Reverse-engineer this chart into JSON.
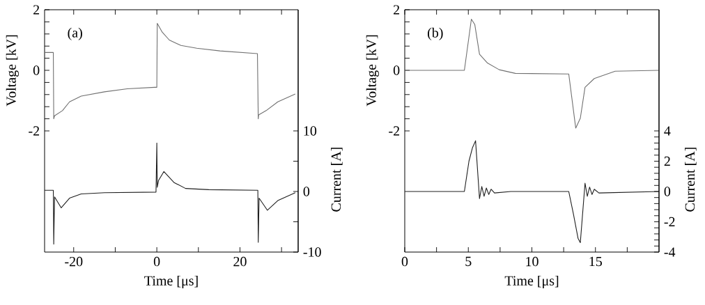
{
  "chart_data": [
    {
      "type": "line",
      "annotations": [
        "(a)"
      ],
      "xlabel": "Time [μs]",
      "ylabel": "Voltage [kV]",
      "y2label": "Current [A]",
      "xlim": [
        -27,
        34
      ],
      "xticks": [
        -20,
        {
          "value": -10,
          "label": null
        },
        0,
        {
          "value": 10,
          "label": null
        },
        20,
        {
          "value": 30,
          "label": null
        }
      ],
      "ylim": [
        -6,
        2
      ],
      "yticks": [
        -2,
        {
          "value": -1.6,
          "label": null
        },
        {
          "value": -1.2,
          "label": null
        },
        {
          "value": -0.8,
          "label": null
        },
        {
          "value": -0.4,
          "label": null
        },
        0,
        {
          "value": 0.4,
          "label": null
        },
        {
          "value": 0.8,
          "label": null
        },
        {
          "value": 1.2,
          "label": null
        },
        {
          "value": 1.6,
          "label": null
        },
        2
      ],
      "y2lim": [
        -10,
        30
      ],
      "y2ticks": [
        -10,
        {
          "value": -5,
          "label": null
        },
        0,
        {
          "value": 5,
          "label": null
        },
        10
      ],
      "series": [
        {
          "color": "#707070",
          "x": [
            -27,
            -24.9,
            -24.8,
            -24.6,
            -22.7,
            -21.0,
            -18.2,
            -12.6,
            -7.1,
            -0.5,
            0,
            0.1,
            1.3,
            3.0,
            5.8,
            9.6,
            15.2,
            24.2,
            24.4,
            24.5,
            26.3,
            29.1,
            33.3
          ],
          "values": [
            0.59,
            0.59,
            -1.6,
            -1.5,
            -1.33,
            -1.04,
            -0.85,
            -0.71,
            -0.61,
            -0.56,
            -0.56,
            1.55,
            1.26,
            1.0,
            0.82,
            0.73,
            0.64,
            0.55,
            -1.6,
            -1.47,
            -1.33,
            -1.04,
            -0.78
          ]
        },
        {
          "color": "#1e1e1e",
          "axis": "y2",
          "x": [
            -27,
            -24.9,
            -24.8,
            -24.6,
            -23.0,
            -21.0,
            -18.2,
            -12.6,
            -0.2,
            0,
            0.1,
            0.4,
            1.7,
            4.1,
            6.9,
            12.5,
            24.3,
            24.4,
            24.6,
            26.6,
            29.1,
            33.3
          ],
          "values": [
            0.2,
            0.2,
            -8.7,
            -0.9,
            -2.7,
            -1.1,
            -0.4,
            -0.2,
            -0.1,
            8.0,
            0.7,
            1.8,
            3.3,
            1.5,
            0.5,
            0.3,
            0.2,
            -8.4,
            -1.1,
            -3.1,
            -1.5,
            -0.2
          ]
        }
      ]
    },
    {
      "type": "line",
      "annotations": [
        "(b)"
      ],
      "xlabel": "Time [μs]",
      "ylabel": "Voltage [kV]",
      "y2label": "Current [A]",
      "xlim": [
        0,
        20
      ],
      "xticks": [
        0,
        {
          "value": 2.5,
          "label": null
        },
        5,
        {
          "value": 7.5,
          "label": null
        },
        10,
        {
          "value": 12.5,
          "label": null
        },
        15,
        {
          "value": 17.5,
          "label": null
        }
      ],
      "ylim": [
        -6,
        2
      ],
      "yticks": [
        -2,
        {
          "value": -1.6,
          "label": null
        },
        {
          "value": -1.2,
          "label": null
        },
        {
          "value": -0.8,
          "label": null
        },
        {
          "value": -0.4,
          "label": null
        },
        0,
        {
          "value": 0.4,
          "label": null
        },
        {
          "value": 0.8,
          "label": null
        },
        {
          "value": 1.2,
          "label": null
        },
        {
          "value": 1.6,
          "label": null
        },
        2
      ],
      "y2lim": [
        -4,
        12
      ],
      "y2ticks": [
        -4,
        {
          "value": -3.6,
          "label": null
        },
        {
          "value": -3.2,
          "label": null
        },
        {
          "value": -2.8,
          "label": null
        },
        {
          "value": -2.4,
          "label": null
        },
        -2,
        {
          "value": -1.6,
          "label": null
        },
        {
          "value": -1.2,
          "label": null
        },
        {
          "value": -0.8,
          "label": null
        },
        {
          "value": -0.4,
          "label": null
        },
        0,
        {
          "value": 0.4,
          "label": null
        },
        {
          "value": 0.8,
          "label": null
        },
        {
          "value": 1.2,
          "label": null
        },
        {
          "value": 1.6,
          "label": null
        },
        2,
        {
          "value": 2.4,
          "label": null
        },
        {
          "value": 2.8,
          "label": null
        },
        {
          "value": 3.2,
          "label": null
        },
        {
          "value": 3.6,
          "label": null
        },
        4
      ],
      "series": [
        {
          "color": "#707070",
          "x": [
            0,
            4.69,
            5.24,
            5.51,
            5.88,
            6.51,
            7.43,
            8.7,
            12.9,
            13.45,
            13.81,
            14.18,
            14.91,
            16.55,
            20
          ],
          "values": [
            0,
            0,
            1.69,
            1.51,
            0.53,
            0.24,
            0.02,
            -0.1,
            -0.12,
            -1.91,
            -1.58,
            -0.56,
            -0.27,
            -0.03,
            0
          ]
        },
        {
          "color": "#1e1e1e",
          "axis": "y2",
          "x": [
            0,
            4.69,
            5.05,
            5.33,
            5.57,
            5.88,
            6.06,
            6.24,
            6.42,
            6.61,
            6.79,
            7.06,
            8.34,
            12.9,
            13.27,
            13.63,
            13.81,
            14.18,
            14.36,
            14.54,
            14.73,
            14.91,
            15.27,
            20
          ],
          "values": [
            0,
            0,
            2.0,
            2.9,
            3.35,
            -0.47,
            0.33,
            -0.32,
            0.23,
            -0.2,
            0.15,
            -0.1,
            0,
            0,
            -1.5,
            -3.09,
            -3.38,
            0.55,
            -0.32,
            0.29,
            -0.2,
            0.15,
            -0.1,
            0
          ]
        }
      ]
    }
  ]
}
